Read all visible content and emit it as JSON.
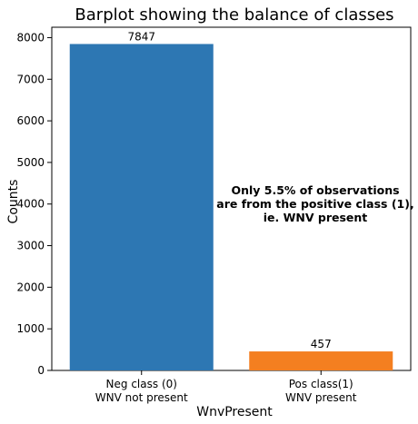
{
  "chart_data": {
    "type": "bar",
    "title": "Barplot showing the balance of classes",
    "xlabel": "WnvPresent",
    "ylabel": "Counts",
    "ylim": [
      0,
      8250
    ],
    "yticks": [
      0,
      1000,
      2000,
      3000,
      4000,
      5000,
      6000,
      7000,
      8000
    ],
    "grid": false,
    "categories": [
      [
        "Neg class (0)",
        "WNV not present"
      ],
      [
        "Pos class(1)",
        "WNV present"
      ]
    ],
    "values": [
      7847,
      457
    ],
    "colors": [
      "#2d77b3",
      "#f47f20"
    ],
    "annotation": [
      "Only 5.5% of observations",
      "are from the positive class (1),",
      "ie. WNV present"
    ]
  }
}
